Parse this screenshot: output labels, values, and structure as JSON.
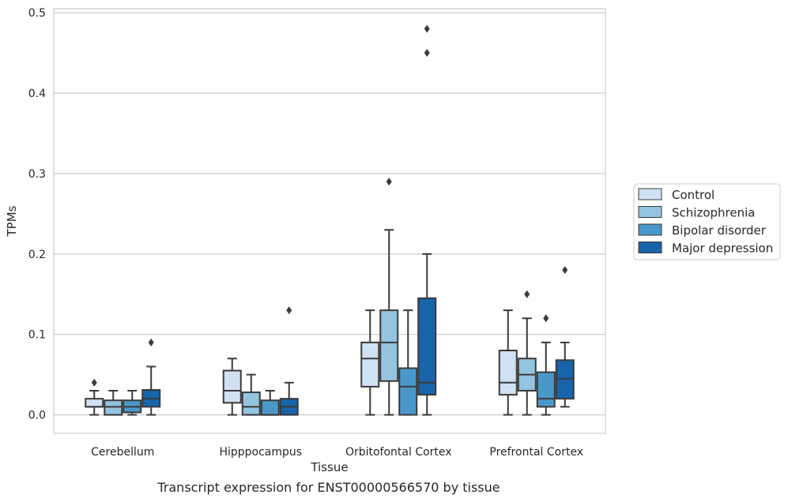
{
  "chart_data": {
    "type": "box",
    "title": "",
    "caption": "Transcript expression for ENST00000566570 by tissue",
    "xlabel": "Tissue",
    "ylabel": "TPMs",
    "ylim": [
      -0.023,
      0.505
    ],
    "yticks": [
      0.0,
      0.1,
      0.2,
      0.3,
      0.4,
      0.5
    ],
    "ytick_labels": [
      "0.0",
      "0.1",
      "0.2",
      "0.3",
      "0.4",
      "0.5"
    ],
    "grid": "horizontal",
    "legend_position": "right",
    "categories": [
      "Cerebellum",
      "Hipppocampus",
      "Orbitofontal Cortex",
      "Prefrontal Cortex"
    ],
    "series": [
      {
        "name": "Control",
        "color": "#d0e1f2",
        "boxes": [
          {
            "whislo": 0.0,
            "q1": 0.01,
            "med": 0.01,
            "q3": 0.02,
            "whishi": 0.03,
            "fliers": [
              0.04
            ]
          },
          {
            "whislo": 0.0,
            "q1": 0.015,
            "med": 0.03,
            "q3": 0.055,
            "whishi": 0.07,
            "fliers": []
          },
          {
            "whislo": 0.0,
            "q1": 0.035,
            "med": 0.07,
            "q3": 0.09,
            "whishi": 0.13,
            "fliers": []
          },
          {
            "whislo": 0.0,
            "q1": 0.025,
            "med": 0.04,
            "q3": 0.08,
            "whishi": 0.13,
            "fliers": []
          }
        ]
      },
      {
        "name": "Schizophrenia",
        "color": "#94c4df",
        "boxes": [
          {
            "whislo": 0.0,
            "q1": 0.0,
            "med": 0.01,
            "q3": 0.018,
            "whishi": 0.03,
            "fliers": []
          },
          {
            "whislo": 0.0,
            "q1": 0.0,
            "med": 0.01,
            "q3": 0.028,
            "whishi": 0.05,
            "fliers": []
          },
          {
            "whislo": 0.0,
            "q1": 0.042,
            "med": 0.09,
            "q3": 0.13,
            "whishi": 0.23,
            "fliers": [
              0.29
            ]
          },
          {
            "whislo": 0.0,
            "q1": 0.03,
            "med": 0.05,
            "q3": 0.07,
            "whishi": 0.12,
            "fliers": [
              0.15
            ]
          }
        ]
      },
      {
        "name": "Bipolar disorder",
        "color": "#4a98c9",
        "boxes": [
          {
            "whislo": 0.0,
            "q1": 0.003,
            "med": 0.01,
            "q3": 0.018,
            "whishi": 0.03,
            "fliers": []
          },
          {
            "whislo": 0.0,
            "q1": 0.0,
            "med": 0.0,
            "q3": 0.018,
            "whishi": 0.03,
            "fliers": []
          },
          {
            "whislo": 0.0,
            "q1": 0.0,
            "med": 0.035,
            "q3": 0.058,
            "whishi": 0.13,
            "fliers": []
          },
          {
            "whislo": 0.0,
            "q1": 0.01,
            "med": 0.02,
            "q3": 0.053,
            "whishi": 0.09,
            "fliers": [
              0.12
            ]
          }
        ]
      },
      {
        "name": "Major depression",
        "color": "#1764ab",
        "boxes": [
          {
            "whislo": 0.0,
            "q1": 0.01,
            "med": 0.02,
            "q3": 0.031,
            "whishi": 0.06,
            "fliers": [
              0.09
            ]
          },
          {
            "whislo": 0.0,
            "q1": 0.0,
            "med": 0.01,
            "q3": 0.02,
            "whishi": 0.04,
            "fliers": [
              0.13
            ]
          },
          {
            "whislo": 0.0,
            "q1": 0.025,
            "med": 0.04,
            "q3": 0.145,
            "whishi": 0.2,
            "fliers": [
              0.45,
              0.48
            ]
          },
          {
            "whislo": 0.01,
            "q1": 0.02,
            "med": 0.045,
            "q3": 0.068,
            "whishi": 0.09,
            "fliers": [
              0.18
            ]
          }
        ]
      }
    ]
  }
}
